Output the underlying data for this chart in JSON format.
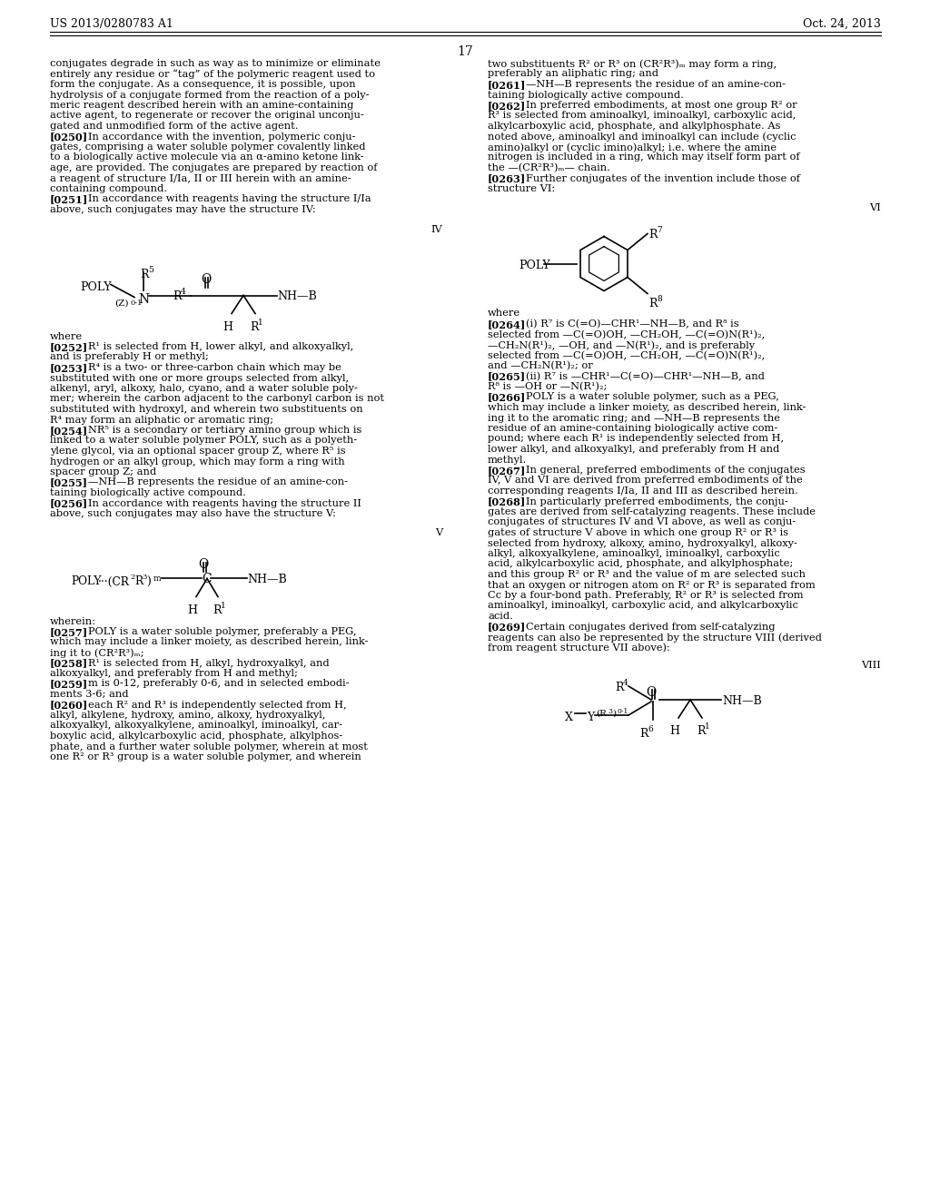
{
  "header_left": "US 2013/0280783 A1",
  "header_right": "Oct. 24, 2013",
  "page_number": "17",
  "bg": "#ffffff"
}
